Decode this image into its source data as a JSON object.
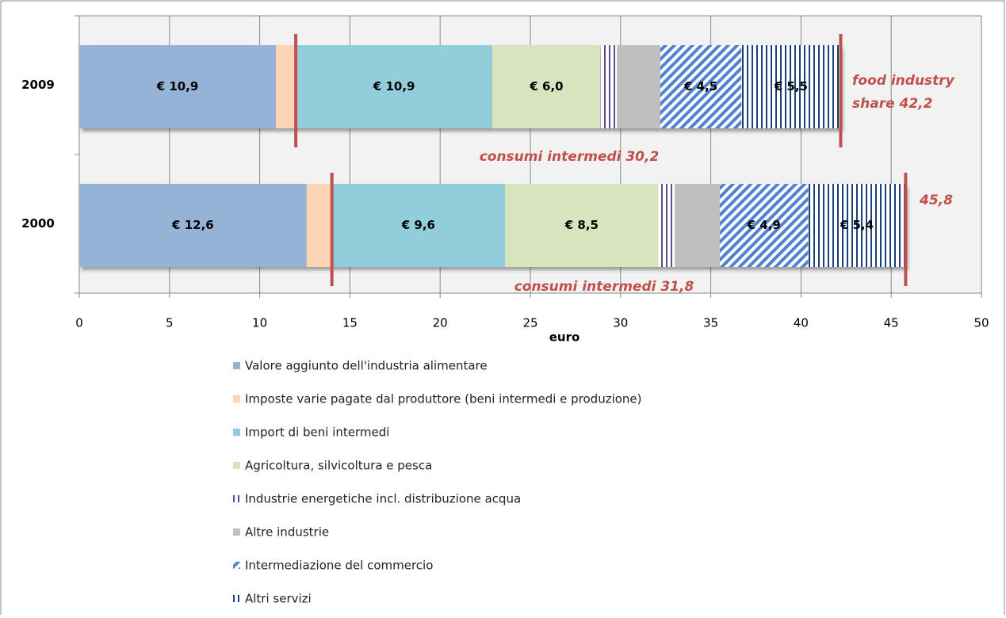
{
  "chart_data": {
    "type": "stacked-bar-horizontal",
    "categories": [
      "2009",
      "2000"
    ],
    "series": [
      {
        "name": "Valore aggiunto dell'industria alimentare",
        "color": "#95b3d7",
        "values": [
          10.9,
          12.6
        ],
        "value_labels": [
          "€ 10,9",
          "€ 12,6"
        ]
      },
      {
        "name": "Imposte varie pagate dal produttore (beni intermedi e produzione)",
        "color": "#fcd5b5",
        "values": [
          1.1,
          1.4
        ]
      },
      {
        "name": "Import di beni intermedi",
        "color": "#92cddc",
        "values": [
          10.9,
          9.6
        ],
        "value_labels": [
          "€ 10,9",
          "€ 9,6"
        ]
      },
      {
        "name": "Agricoltura, silvicoltura e pesca",
        "color": "#d7e4bd",
        "values": [
          6.0,
          8.5
        ],
        "value_labels": [
          "€ 6,0",
          "€ 8,5"
        ]
      },
      {
        "name": "Industrie energetiche incl. distribuzione acqua",
        "color": "#5f4b8b",
        "pattern": "vertical",
        "values": [
          0.9,
          0.9
        ]
      },
      {
        "name": "Altre industrie",
        "color": "#bfbfbf",
        "values": [
          2.4,
          2.5
        ]
      },
      {
        "name": "Intermediazione del commercio",
        "color": "#4f81d4",
        "pattern": "diagonal",
        "values": [
          4.5,
          4.9
        ],
        "value_labels": [
          "€ 4,5",
          "€ 4,9"
        ]
      },
      {
        "name": "Altri servizi",
        "color": "#1f3f7a",
        "pattern": "vertical",
        "values": [
          5.5,
          5.4
        ],
        "value_labels": [
          "€ 5,5",
          "€ 5,4"
        ]
      }
    ],
    "x_label": "euro",
    "xlim": [
      0,
      50
    ],
    "xticks": [
      0,
      5,
      10,
      15,
      20,
      25,
      30,
      35,
      40,
      45,
      50
    ],
    "grid": true,
    "annotations": [
      "food industry",
      "share 42,2",
      "consumi intermedi 30,2",
      "45,8",
      "consumi intermedi 31,8"
    ]
  }
}
